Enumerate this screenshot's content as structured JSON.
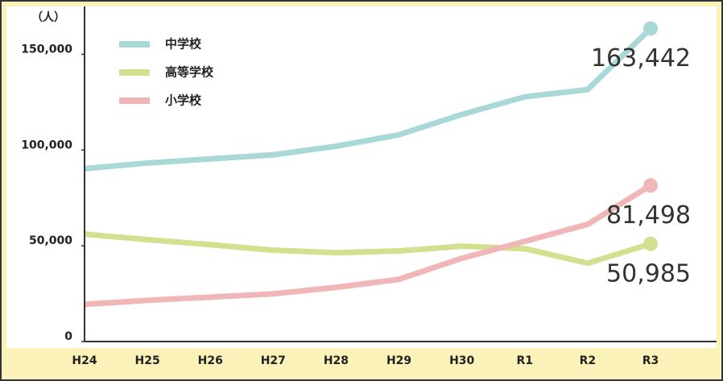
{
  "chart_data": {
    "type": "line",
    "y_label": "（人）",
    "categories": [
      "H24",
      "H25",
      "H26",
      "H27",
      "H28",
      "H29",
      "H30",
      "R1",
      "R2",
      "R3"
    ],
    "series": [
      {
        "name": "中学校",
        "color": "#a9d9d6",
        "values": [
          90300,
          93200,
          95400,
          97500,
          102000,
          108000,
          118600,
          127800,
          131600,
          163442
        ],
        "value_labels": [
          null,
          null,
          null,
          null,
          null,
          null,
          null,
          null,
          null,
          "163,442"
        ]
      },
      {
        "name": "高等学校",
        "color": "#d1e190",
        "values": [
          56100,
          53200,
          50600,
          47700,
          46400,
          47300,
          49800,
          48500,
          40900,
          50985
        ],
        "value_labels": [
          null,
          null,
          null,
          null,
          null,
          null,
          null,
          null,
          null,
          "50,985"
        ]
      },
      {
        "name": "小学校",
        "color": "#f1b6b8",
        "values": [
          19400,
          21500,
          23200,
          24900,
          28300,
          32500,
          43500,
          52300,
          61200,
          81498
        ],
        "value_labels": [
          null,
          null,
          null,
          null,
          null,
          null,
          null,
          null,
          null,
          "81,498"
        ]
      }
    ],
    "ylim": [
      0,
      175000
    ],
    "yticks": [
      0,
      {
        "value": 50000,
        "label": "50,000"
      },
      {
        "value": 100000,
        "label": "100,000"
      },
      {
        "value": 150000,
        "label": "150,000"
      }
    ]
  }
}
